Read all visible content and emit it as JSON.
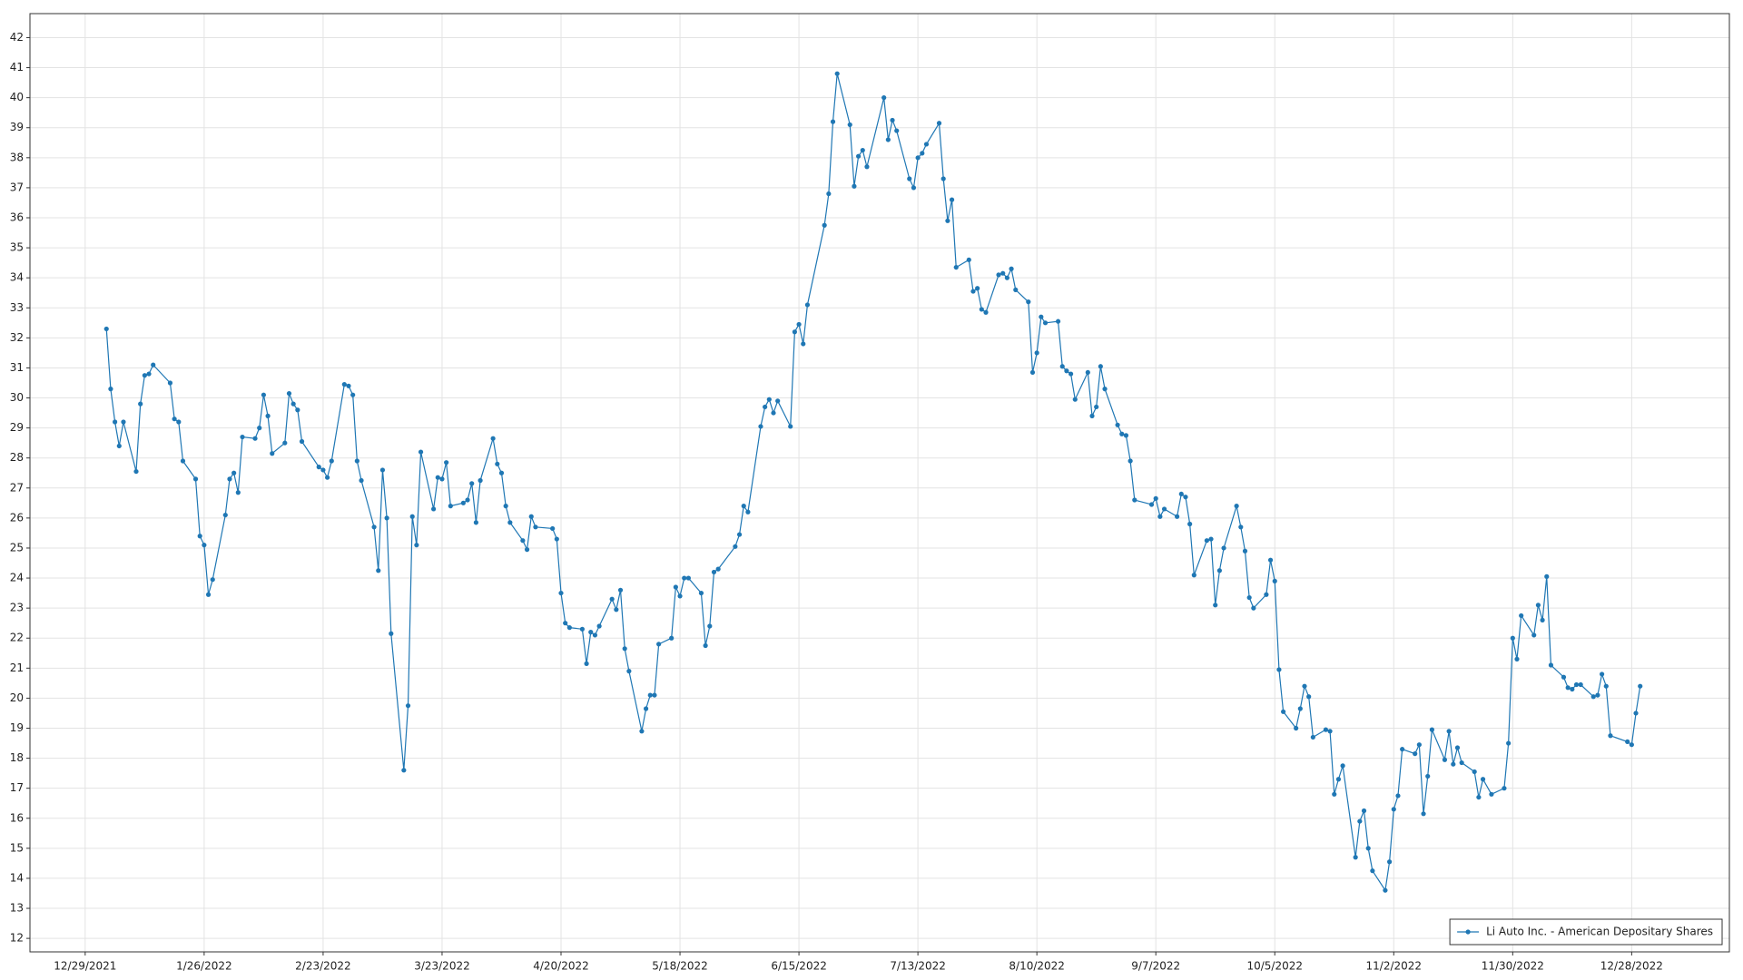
{
  "chart_data": {
    "type": "line",
    "x": [
      "1/3/2022",
      "1/4/2022",
      "1/5/2022",
      "1/6/2022",
      "1/7/2022",
      "1/10/2022",
      "1/11/2022",
      "1/12/2022",
      "1/13/2022",
      "1/14/2022",
      "1/18/2022",
      "1/19/2022",
      "1/20/2022",
      "1/21/2022",
      "1/24/2022",
      "1/25/2022",
      "1/26/2022",
      "1/27/2022",
      "1/28/2022",
      "1/31/2022",
      "2/1/2022",
      "2/2/2022",
      "2/3/2022",
      "2/4/2022",
      "2/7/2022",
      "2/8/2022",
      "2/9/2022",
      "2/10/2022",
      "2/11/2022",
      "2/14/2022",
      "2/15/2022",
      "2/16/2022",
      "2/17/2022",
      "2/18/2022",
      "2/22/2022",
      "2/23/2022",
      "2/24/2022",
      "2/25/2022",
      "2/28/2022",
      "3/1/2022",
      "3/2/2022",
      "3/3/2022",
      "3/4/2022",
      "3/7/2022",
      "3/8/2022",
      "3/9/2022",
      "3/10/2022",
      "3/11/2022",
      "3/14/2022",
      "3/15/2022",
      "3/16/2022",
      "3/17/2022",
      "3/18/2022",
      "3/21/2022",
      "3/22/2022",
      "3/23/2022",
      "3/24/2022",
      "3/25/2022",
      "3/28/2022",
      "3/29/2022",
      "3/30/2022",
      "3/31/2022",
      "4/1/2022",
      "4/4/2022",
      "4/5/2022",
      "4/6/2022",
      "4/7/2022",
      "4/8/2022",
      "4/11/2022",
      "4/12/2022",
      "4/13/2022",
      "4/14/2022",
      "4/18/2022",
      "4/19/2022",
      "4/20/2022",
      "4/21/2022",
      "4/22/2022",
      "4/25/2022",
      "4/26/2022",
      "4/27/2022",
      "4/28/2022",
      "4/29/2022",
      "5/2/2022",
      "5/3/2022",
      "5/4/2022",
      "5/5/2022",
      "5/6/2022",
      "5/9/2022",
      "5/10/2022",
      "5/11/2022",
      "5/12/2022",
      "5/13/2022",
      "5/16/2022",
      "5/17/2022",
      "5/18/2022",
      "5/19/2022",
      "5/20/2022",
      "5/23/2022",
      "5/24/2022",
      "5/25/2022",
      "5/26/2022",
      "5/27/2022",
      "5/31/2022",
      "6/1/2022",
      "6/2/2022",
      "6/3/2022",
      "6/6/2022",
      "6/7/2022",
      "6/8/2022",
      "6/9/2022",
      "6/10/2022",
      "6/13/2022",
      "6/14/2022",
      "6/15/2022",
      "6/16/2022",
      "6/17/2022",
      "6/21/2022",
      "6/22/2022",
      "6/23/2022",
      "6/24/2022",
      "6/27/2022",
      "6/28/2022",
      "6/29/2022",
      "6/30/2022",
      "7/1/2022",
      "7/5/2022",
      "7/6/2022",
      "7/7/2022",
      "7/8/2022",
      "7/11/2022",
      "7/12/2022",
      "7/13/2022",
      "7/14/2022",
      "7/15/2022",
      "7/18/2022",
      "7/19/2022",
      "7/20/2022",
      "7/21/2022",
      "7/22/2022",
      "7/25/2022",
      "7/26/2022",
      "7/27/2022",
      "7/28/2022",
      "7/29/2022",
      "8/1/2022",
      "8/2/2022",
      "8/3/2022",
      "8/4/2022",
      "8/5/2022",
      "8/8/2022",
      "8/9/2022",
      "8/10/2022",
      "8/11/2022",
      "8/12/2022",
      "8/15/2022",
      "8/16/2022",
      "8/17/2022",
      "8/18/2022",
      "8/19/2022",
      "8/22/2022",
      "8/23/2022",
      "8/24/2022",
      "8/25/2022",
      "8/26/2022",
      "8/29/2022",
      "8/30/2022",
      "8/31/2022",
      "9/1/2022",
      "9/2/2022",
      "9/6/2022",
      "9/7/2022",
      "9/8/2022",
      "9/9/2022",
      "9/12/2022",
      "9/13/2022",
      "9/14/2022",
      "9/15/2022",
      "9/16/2022",
      "9/19/2022",
      "9/20/2022",
      "9/21/2022",
      "9/22/2022",
      "9/23/2022",
      "9/26/2022",
      "9/27/2022",
      "9/28/2022",
      "9/29/2022",
      "9/30/2022",
      "10/3/2022",
      "10/4/2022",
      "10/5/2022",
      "10/6/2022",
      "10/7/2022",
      "10/10/2022",
      "10/11/2022",
      "10/12/2022",
      "10/13/2022",
      "10/14/2022",
      "10/17/2022",
      "10/18/2022",
      "10/19/2022",
      "10/20/2022",
      "10/21/2022",
      "10/24/2022",
      "10/25/2022",
      "10/26/2022",
      "10/27/2022",
      "10/28/2022",
      "10/31/2022",
      "11/1/2022",
      "11/2/2022",
      "11/3/2022",
      "11/4/2022",
      "11/7/2022",
      "11/8/2022",
      "11/9/2022",
      "11/10/2022",
      "11/11/2022",
      "11/14/2022",
      "11/15/2022",
      "11/16/2022",
      "11/17/2022",
      "11/18/2022",
      "11/21/2022",
      "11/22/2022",
      "11/23/2022",
      "11/25/2022",
      "11/28/2022",
      "11/29/2022",
      "11/30/2022",
      "12/1/2022",
      "12/2/2022",
      "12/5/2022",
      "12/6/2022",
      "12/7/2022",
      "12/8/2022",
      "12/9/2022",
      "12/12/2022",
      "12/13/2022",
      "12/14/2022",
      "12/15/2022",
      "12/16/2022",
      "12/19/2022",
      "12/20/2022",
      "12/21/2022",
      "12/22/2022",
      "12/23/2022",
      "12/27/2022",
      "12/28/2022",
      "12/29/2022",
      "12/30/2022"
    ],
    "series": [
      {
        "name": "Li Auto Inc. - American Depositary Shares",
        "color": "#1f77b4",
        "values": [
          32.3,
          30.3,
          29.2,
          28.4,
          29.2,
          27.55,
          29.8,
          30.75,
          30.8,
          31.1,
          30.5,
          29.3,
          29.2,
          27.9,
          27.3,
          25.4,
          25.1,
          23.45,
          23.95,
          26.1,
          27.3,
          27.5,
          26.85,
          28.7,
          28.65,
          29.0,
          30.1,
          29.4,
          28.15,
          28.5,
          30.15,
          29.8,
          29.6,
          28.55,
          27.7,
          27.6,
          27.35,
          27.9,
          30.45,
          30.4,
          30.1,
          27.9,
          27.25,
          25.7,
          24.25,
          27.6,
          26.0,
          22.15,
          17.6,
          19.75,
          26.05,
          25.1,
          28.2,
          26.3,
          27.35,
          27.3,
          27.85,
          26.4,
          26.5,
          26.6,
          27.15,
          25.85,
          27.25,
          28.65,
          27.8,
          27.5,
          26.4,
          25.85,
          25.25,
          24.95,
          26.05,
          25.7,
          25.65,
          25.3,
          23.5,
          22.5,
          22.35,
          22.3,
          21.15,
          22.2,
          22.1,
          22.4,
          23.3,
          22.95,
          23.6,
          21.65,
          20.9,
          18.9,
          19.65,
          20.1,
          20.1,
          21.8,
          22.0,
          23.7,
          23.4,
          24.0,
          24.0,
          23.5,
          21.75,
          22.4,
          24.2,
          24.3,
          25.05,
          25.45,
          26.4,
          26.2,
          29.05,
          29.7,
          29.95,
          29.5,
          29.9,
          29.05,
          32.2,
          32.45,
          31.8,
          33.1,
          35.75,
          36.8,
          39.2,
          40.8,
          39.1,
          37.05,
          38.05,
          38.25,
          37.7,
          40.0,
          38.6,
          39.25,
          38.9,
          37.3,
          37.0,
          38.0,
          38.15,
          38.45,
          39.15,
          37.3,
          35.9,
          36.6,
          34.35,
          34.6,
          33.55,
          33.65,
          32.95,
          32.85,
          34.1,
          34.15,
          34.0,
          34.3,
          33.6,
          33.2,
          30.85,
          31.5,
          32.7,
          32.5,
          32.55,
          31.05,
          30.9,
          30.8,
          29.95,
          30.85,
          29.4,
          29.7,
          31.05,
          30.3,
          29.1,
          28.8,
          28.75,
          27.9,
          26.6,
          26.45,
          26.65,
          26.05,
          26.3,
          26.05,
          26.8,
          26.7,
          25.8,
          24.1,
          25.25,
          25.3,
          23.1,
          24.25,
          25.0,
          26.4,
          25.7,
          24.9,
          23.35,
          23.0,
          23.45,
          24.6,
          23.9,
          20.95,
          19.55,
          19.0,
          19.65,
          20.4,
          20.05,
          18.7,
          18.95,
          18.9,
          16.8,
          17.3,
          17.75,
          14.7,
          15.9,
          16.25,
          15.0,
          14.25,
          13.6,
          14.55,
          16.3,
          16.75,
          18.3,
          18.15,
          18.45,
          16.15,
          17.4,
          18.95,
          17.95,
          18.9,
          17.8,
          18.35,
          17.85,
          17.55,
          16.7,
          17.3,
          16.8,
          17.0,
          18.5,
          22.0,
          21.3,
          22.75,
          22.1,
          23.1,
          22.6,
          24.05,
          21.1,
          20.7,
          20.35,
          20.3,
          20.45,
          20.45,
          20.05,
          20.1,
          20.8,
          20.4,
          18.75,
          18.55,
          18.45,
          19.5,
          20.4
        ]
      }
    ],
    "xlim": [
      "12/16/2021",
      "1/20/2023"
    ],
    "xticks": [
      "12/29/2021",
      "1/26/2022",
      "2/23/2022",
      "3/23/2022",
      "4/20/2022",
      "5/18/2022",
      "6/15/2022",
      "7/13/2022",
      "8/10/2022",
      "9/7/2022",
      "10/5/2022",
      "11/2/2022",
      "11/30/2022",
      "12/28/2022"
    ],
    "ylim": [
      11.55,
      42.8
    ],
    "yticks": [
      12,
      13,
      14,
      15,
      16,
      17,
      18,
      19,
      20,
      21,
      22,
      23,
      24,
      25,
      26,
      27,
      28,
      29,
      30,
      31,
      32,
      33,
      34,
      35,
      36,
      37,
      38,
      39,
      40,
      41,
      42
    ],
    "grid": true,
    "legend": "lower right"
  }
}
